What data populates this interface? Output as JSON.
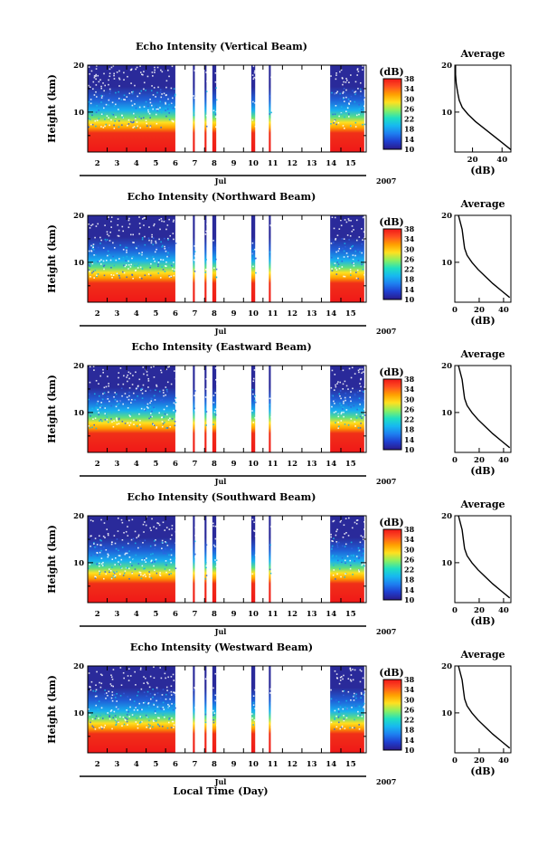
{
  "figure": {
    "x_label": "Local Time (Day)",
    "month_label": "Jul",
    "year_label": "2007",
    "colorbar_title": "(dB)",
    "colorbar_ticks": [
      "10",
      "14",
      "18",
      "22",
      "26",
      "30",
      "34",
      "38"
    ],
    "colorbar_colors": [
      "#2a1a8a",
      "#1f3fd0",
      "#1e7ef0",
      "#17b8f0",
      "#20e0c0",
      "#8cf060",
      "#ffe020",
      "#ffa000",
      "#ff5020",
      "#f01818"
    ],
    "colors": {
      "low": "#2a2a9a",
      "mid": "#20b0f0",
      "high": "#f02020",
      "line": "#000000"
    }
  },
  "chart_data": [
    {
      "type": "heatmap",
      "title": "Echo Intensity (Vertical Beam)",
      "ylabel": "Height (km)",
      "xlabel": "",
      "x_tick_labels": [
        "2",
        "3",
        "4",
        "5",
        "6",
        "7",
        "8",
        "9",
        "10",
        "11",
        "12",
        "13",
        "14",
        "15"
      ],
      "x_range": [
        1.5,
        15.8
      ],
      "y_tick_labels": [
        "10",
        "20"
      ],
      "ylim": [
        1.5,
        20
      ],
      "colorbar_range": [
        10,
        38
      ],
      "data_segments_day": [
        [
          1.5,
          6.0
        ],
        [
          6.9,
          7.0
        ],
        [
          7.5,
          7.6
        ],
        [
          7.9,
          8.1
        ],
        [
          9.9,
          10.1
        ],
        [
          10.8,
          10.9
        ],
        [
          13.95,
          15.7
        ]
      ],
      "side_profile": {
        "title": "Average",
        "xlabel": "(dB)",
        "x_tick_labels": [
          "20",
          "40"
        ],
        "xlim": [
          8,
          46
        ],
        "ylim": [
          1.5,
          20
        ],
        "y_tick_labels": [
          "10",
          "20"
        ],
        "profile": [
          [
            46,
            2.0
          ],
          [
            40,
            3.5
          ],
          [
            34,
            5
          ],
          [
            28,
            6.5
          ],
          [
            22,
            8
          ],
          [
            17,
            9.5
          ],
          [
            13,
            11
          ],
          [
            11,
            12.5
          ],
          [
            10,
            14
          ],
          [
            9,
            16
          ],
          [
            8.5,
            18
          ],
          [
            8.5,
            20
          ]
        ]
      }
    },
    {
      "type": "heatmap",
      "title": "Echo Intensity (Northward Beam)",
      "ylabel": "Height (km)",
      "xlabel": "",
      "x_tick_labels": [
        "2",
        "3",
        "4",
        "5",
        "6",
        "7",
        "8",
        "9",
        "10",
        "11",
        "12",
        "13",
        "14",
        "15"
      ],
      "x_range": [
        1.5,
        15.8
      ],
      "y_tick_labels": [
        "10",
        "20"
      ],
      "ylim": [
        1.5,
        20
      ],
      "colorbar_range": [
        10,
        38
      ],
      "data_segments_day": [
        [
          1.5,
          6.0
        ],
        [
          6.9,
          7.0
        ],
        [
          7.5,
          7.6
        ],
        [
          7.9,
          8.1
        ],
        [
          9.9,
          10.1
        ],
        [
          10.8,
          10.9
        ],
        [
          13.95,
          15.7
        ]
      ],
      "side_profile": {
        "title": "Average",
        "xlabel": "(dB)",
        "x_tick_labels": [
          "0",
          "20",
          "40"
        ],
        "xlim": [
          0,
          46
        ],
        "ylim": [
          1.5,
          20
        ],
        "y_tick_labels": [
          "10",
          "20"
        ],
        "profile": [
          [
            45,
            2.5
          ],
          [
            38,
            4
          ],
          [
            31,
            5.5
          ],
          [
            25,
            7
          ],
          [
            19,
            8.5
          ],
          [
            14,
            10
          ],
          [
            10,
            11.5
          ],
          [
            8,
            13
          ],
          [
            7,
            15
          ],
          [
            6,
            17
          ],
          [
            4,
            19
          ],
          [
            3,
            20
          ]
        ]
      }
    },
    {
      "type": "heatmap",
      "title": "Echo Intensity (Eastward Beam)",
      "ylabel": "Height (km)",
      "xlabel": "",
      "x_tick_labels": [
        "2",
        "3",
        "4",
        "5",
        "6",
        "7",
        "8",
        "9",
        "10",
        "11",
        "12",
        "13",
        "14",
        "15"
      ],
      "x_range": [
        1.5,
        15.8
      ],
      "y_tick_labels": [
        "10",
        "20"
      ],
      "ylim": [
        1.5,
        20
      ],
      "colorbar_range": [
        10,
        38
      ],
      "data_segments_day": [
        [
          1.5,
          6.0
        ],
        [
          6.9,
          7.0
        ],
        [
          7.5,
          7.6
        ],
        [
          7.9,
          8.1
        ],
        [
          9.9,
          10.1
        ],
        [
          10.8,
          10.9
        ],
        [
          13.95,
          15.7
        ]
      ],
      "side_profile": {
        "title": "Average",
        "xlabel": "(dB)",
        "x_tick_labels": [
          "0",
          "20",
          "40"
        ],
        "xlim": [
          0,
          46
        ],
        "ylim": [
          1.5,
          20
        ],
        "y_tick_labels": [
          "10",
          "20"
        ],
        "profile": [
          [
            45,
            2.5
          ],
          [
            38,
            4
          ],
          [
            31,
            5.5
          ],
          [
            25,
            7
          ],
          [
            19,
            8.5
          ],
          [
            14,
            10
          ],
          [
            10,
            11.5
          ],
          [
            8,
            13
          ],
          [
            7,
            15
          ],
          [
            6,
            17
          ],
          [
            4,
            19
          ],
          [
            3,
            20
          ]
        ]
      }
    },
    {
      "type": "heatmap",
      "title": "Echo Intensity (Southward Beam)",
      "ylabel": "Height (km)",
      "xlabel": "",
      "x_tick_labels": [
        "2",
        "3",
        "4",
        "5",
        "6",
        "7",
        "8",
        "9",
        "10",
        "11",
        "12",
        "13",
        "14",
        "15"
      ],
      "x_range": [
        1.5,
        15.8
      ],
      "y_tick_labels": [
        "10",
        "20"
      ],
      "ylim": [
        1.5,
        20
      ],
      "colorbar_range": [
        10,
        38
      ],
      "data_segments_day": [
        [
          1.5,
          6.0
        ],
        [
          6.9,
          7.0
        ],
        [
          7.5,
          7.6
        ],
        [
          7.9,
          8.1
        ],
        [
          9.9,
          10.1
        ],
        [
          10.8,
          10.9
        ],
        [
          13.95,
          15.7
        ]
      ],
      "side_profile": {
        "title": "Average",
        "xlabel": "(dB)",
        "x_tick_labels": [
          "0",
          "20",
          "40"
        ],
        "xlim": [
          0,
          46
        ],
        "ylim": [
          1.5,
          20
        ],
        "y_tick_labels": [
          "10",
          "20"
        ],
        "profile": [
          [
            45,
            2.5
          ],
          [
            38,
            4
          ],
          [
            31,
            5.5
          ],
          [
            25,
            7
          ],
          [
            19,
            8.5
          ],
          [
            14,
            10
          ],
          [
            10,
            11.5
          ],
          [
            8,
            13
          ],
          [
            7,
            15
          ],
          [
            6,
            17
          ],
          [
            4,
            19
          ],
          [
            3,
            20
          ]
        ]
      }
    },
    {
      "type": "heatmap",
      "title": "Echo Intensity (Westward Beam)",
      "ylabel": "Height (km)",
      "xlabel": "",
      "x_tick_labels": [
        "2",
        "3",
        "4",
        "5",
        "6",
        "7",
        "8",
        "9",
        "10",
        "11",
        "12",
        "13",
        "14",
        "15"
      ],
      "x_range": [
        1.5,
        15.8
      ],
      "y_tick_labels": [
        "10",
        "20"
      ],
      "ylim": [
        1.5,
        20
      ],
      "colorbar_range": [
        10,
        38
      ],
      "data_segments_day": [
        [
          1.5,
          6.0
        ],
        [
          6.9,
          7.0
        ],
        [
          7.5,
          7.6
        ],
        [
          7.9,
          8.1
        ],
        [
          9.9,
          10.1
        ],
        [
          10.8,
          10.9
        ],
        [
          13.95,
          15.7
        ]
      ],
      "side_profile": {
        "title": "Average",
        "xlabel": "(dB)",
        "x_tick_labels": [
          "0",
          "20",
          "40"
        ],
        "xlim": [
          0,
          46
        ],
        "ylim": [
          1.5,
          20
        ],
        "y_tick_labels": [
          "10",
          "20"
        ],
        "profile": [
          [
            45,
            2.5
          ],
          [
            38,
            4
          ],
          [
            31,
            5.5
          ],
          [
            25,
            7
          ],
          [
            19,
            8.5
          ],
          [
            14,
            10
          ],
          [
            10,
            11.5
          ],
          [
            8,
            13
          ],
          [
            7,
            15
          ],
          [
            6,
            17
          ],
          [
            4,
            19
          ],
          [
            3,
            20
          ]
        ]
      }
    }
  ]
}
